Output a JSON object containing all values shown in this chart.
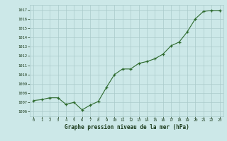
{
  "x": [
    0,
    1,
    2,
    3,
    4,
    5,
    6,
    7,
    8,
    9,
    10,
    11,
    12,
    13,
    14,
    15,
    16,
    17,
    18,
    19,
    20,
    21,
    22,
    23
  ],
  "y": [
    1007.2,
    1007.3,
    1007.5,
    1007.5,
    1006.8,
    1007.0,
    1006.2,
    1006.7,
    1007.1,
    1008.6,
    1010.0,
    1010.6,
    1010.6,
    1011.2,
    1011.4,
    1011.7,
    1012.2,
    1013.1,
    1013.5,
    1014.6,
    1016.0,
    1016.8,
    1016.9,
    1016.9
  ],
  "ylim": [
    1005.5,
    1017.5
  ],
  "xlim": [
    -0.5,
    23.5
  ],
  "yticks": [
    1006,
    1007,
    1008,
    1009,
    1010,
    1011,
    1012,
    1013,
    1014,
    1015,
    1016,
    1017
  ],
  "xticks": [
    0,
    1,
    2,
    3,
    4,
    5,
    6,
    7,
    8,
    9,
    10,
    11,
    12,
    13,
    14,
    15,
    16,
    17,
    18,
    19,
    20,
    21,
    22,
    23
  ],
  "line_color": "#2d6a2d",
  "marker": "+",
  "bg_color": "#cce8e8",
  "grid_color": "#aacaca",
  "xlabel": "Graphe pression niveau de la mer (hPa)",
  "xlabel_color": "#1a3a1a"
}
